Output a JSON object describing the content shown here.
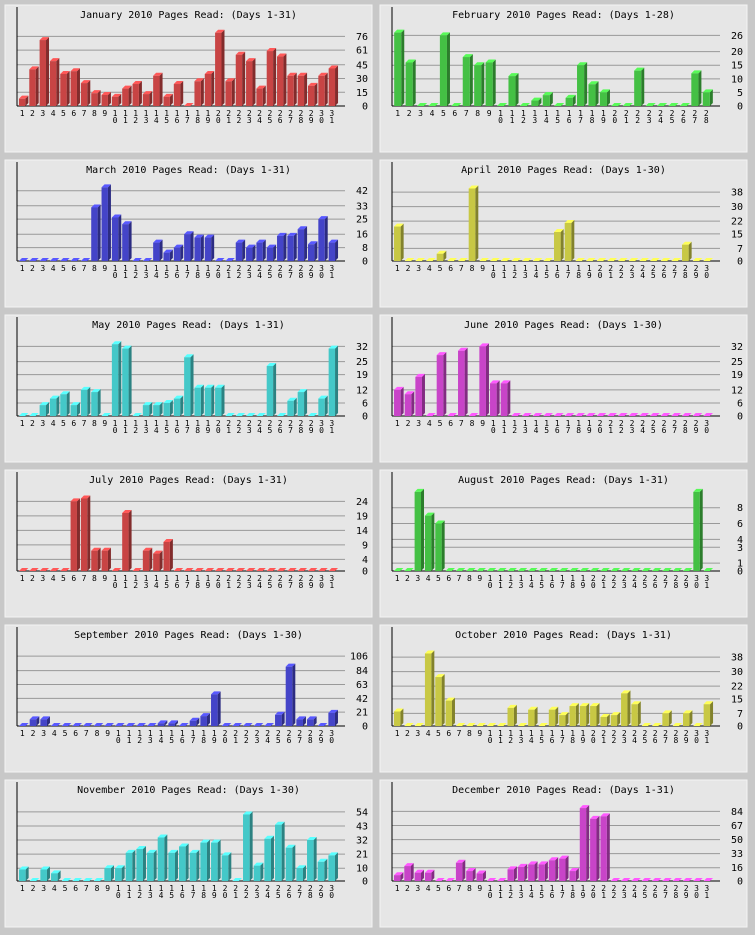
{
  "chart_data": [
    {
      "type": "bar",
      "title": "January 2010 Pages Read: (Days 1-31)",
      "categories": [
        "1",
        "2",
        "3",
        "4",
        "5",
        "6",
        "7",
        "8",
        "9",
        "10",
        "11",
        "12",
        "13",
        "14",
        "15",
        "16",
        "17",
        "18",
        "19",
        "20",
        "21",
        "22",
        "23",
        "24",
        "25",
        "26",
        "27",
        "28",
        "29",
        "30",
        "31"
      ],
      "values": [
        8,
        40,
        72,
        49,
        35,
        38,
        25,
        14,
        12,
        10,
        19,
        24,
        13,
        33,
        10,
        24,
        0,
        27,
        35,
        80,
        27,
        56,
        49,
        19,
        60,
        54,
        33,
        33,
        22,
        33,
        41
      ],
      "color": "#c84444",
      "ylim": [
        0,
        95
      ],
      "yticks": [
        0,
        15,
        30,
        45,
        61,
        76
      ],
      "grid": true
    },
    {
      "type": "bar",
      "title": "February 2010 Pages Read: (Days 1-28)",
      "categories": [
        "1",
        "2",
        "3",
        "4",
        "5",
        "6",
        "7",
        "8",
        "9",
        "10",
        "11",
        "12",
        "13",
        "14",
        "15",
        "16",
        "17",
        "18",
        "19",
        "20",
        "21",
        "22",
        "23",
        "24",
        "25",
        "26",
        "27",
        "28"
      ],
      "values": [
        27,
        16,
        0,
        0,
        26,
        0,
        18,
        15,
        16,
        0,
        11,
        0,
        2,
        4,
        0,
        3,
        15,
        8,
        5,
        0,
        0,
        13,
        0,
        0,
        0,
        0,
        12,
        5
      ],
      "color": "#44c044",
      "ylim": [
        0,
        32
      ],
      "yticks": [
        0,
        5,
        10,
        15,
        20,
        26
      ],
      "grid": true
    },
    {
      "type": "bar",
      "title": "March 2010 Pages Read: (Days 1-31)",
      "categories": [
        "1",
        "2",
        "3",
        "4",
        "5",
        "6",
        "7",
        "8",
        "9",
        "10",
        "11",
        "12",
        "13",
        "14",
        "15",
        "16",
        "17",
        "18",
        "19",
        "20",
        "21",
        "22",
        "23",
        "24",
        "25",
        "26",
        "27",
        "28",
        "29",
        "30",
        "31"
      ],
      "values": [
        0,
        0,
        0,
        0,
        0,
        0,
        0,
        32,
        44,
        26,
        22,
        0,
        0,
        11,
        5,
        8,
        16,
        14,
        14,
        0,
        0,
        11,
        8,
        11,
        8,
        15,
        15,
        19,
        10,
        25,
        11
      ],
      "color": "#4444c8",
      "ylim": [
        0,
        52
      ],
      "yticks": [
        0,
        8,
        16,
        25,
        33,
        42
      ],
      "grid": true
    },
    {
      "type": "bar",
      "title": "April 2010 Pages Read: (Days 1-30)",
      "categories": [
        "1",
        "2",
        "3",
        "4",
        "5",
        "6",
        "7",
        "8",
        "9",
        "10",
        "11",
        "12",
        "13",
        "14",
        "15",
        "16",
        "17",
        "18",
        "19",
        "20",
        "21",
        "22",
        "23",
        "24",
        "25",
        "26",
        "27",
        "28",
        "29",
        "30"
      ],
      "values": [
        19,
        0,
        0,
        0,
        4,
        0,
        0,
        40,
        0,
        0,
        0,
        0,
        0,
        0,
        0,
        16,
        21,
        0,
        0,
        0,
        0,
        0,
        0,
        0,
        0,
        0,
        0,
        9,
        0,
        0
      ],
      "color": "#c8c844",
      "ylim": [
        0,
        48
      ],
      "yticks": [
        0,
        7,
        15,
        22,
        30,
        38
      ],
      "grid": true
    },
    {
      "type": "bar",
      "title": "May 2010 Pages Read: (Days 1-31)",
      "categories": [
        "1",
        "2",
        "3",
        "4",
        "5",
        "6",
        "7",
        "8",
        "9",
        "10",
        "11",
        "12",
        "13",
        "14",
        "15",
        "16",
        "17",
        "18",
        "19",
        "20",
        "21",
        "22",
        "23",
        "24",
        "25",
        "26",
        "27",
        "28",
        "29",
        "30",
        "31"
      ],
      "values": [
        0,
        0,
        5,
        8,
        10,
        5,
        12,
        11,
        0,
        33,
        31,
        0,
        5,
        5,
        6,
        8,
        27,
        13,
        13,
        13,
        0,
        0,
        0,
        0,
        23,
        0,
        7,
        11,
        0,
        8,
        31
      ],
      "color": "#44c8c8",
      "ylim": [
        0,
        40
      ],
      "yticks": [
        0,
        6,
        12,
        19,
        25,
        32
      ],
      "grid": true
    },
    {
      "type": "bar",
      "title": "June 2010 Pages Read: (Days 1-30)",
      "categories": [
        "1",
        "2",
        "3",
        "4",
        "5",
        "6",
        "7",
        "8",
        "9",
        "10",
        "11",
        "12",
        "13",
        "14",
        "15",
        "16",
        "17",
        "18",
        "19",
        "20",
        "21",
        "22",
        "23",
        "24",
        "25",
        "26",
        "27",
        "28",
        "29",
        "30"
      ],
      "values": [
        12,
        10,
        18,
        0,
        28,
        0,
        30,
        0,
        32,
        15,
        15,
        0,
        0,
        0,
        0,
        0,
        0,
        0,
        0,
        0,
        0,
        0,
        0,
        0,
        0,
        0,
        0,
        0,
        0,
        0
      ],
      "color": "#c844c8",
      "ylim": [
        0,
        40
      ],
      "yticks": [
        0,
        6,
        12,
        19,
        25,
        32
      ],
      "grid": true
    },
    {
      "type": "bar",
      "title": "July 2010 Pages Read: (Days 1-31)",
      "categories": [
        "1",
        "2",
        "3",
        "4",
        "5",
        "6",
        "7",
        "8",
        "9",
        "10",
        "11",
        "12",
        "13",
        "14",
        "15",
        "16",
        "17",
        "18",
        "19",
        "20",
        "21",
        "22",
        "23",
        "24",
        "25",
        "26",
        "27",
        "28",
        "29",
        "30",
        "31"
      ],
      "values": [
        0,
        0,
        0,
        0,
        0,
        24,
        25,
        7,
        7,
        0,
        20,
        0,
        7,
        6,
        10,
        0,
        0,
        0,
        0,
        0,
        0,
        0,
        0,
        0,
        0,
        0,
        0,
        0,
        0,
        0,
        0
      ],
      "color": "#c84444",
      "ylim": [
        0,
        30
      ],
      "yticks": [
        0,
        4,
        9,
        14,
        19,
        24
      ],
      "grid": true
    },
    {
      "type": "bar",
      "title": "August 2010 Pages Read: (Days 1-31)",
      "categories": [
        "1",
        "2",
        "3",
        "4",
        "5",
        "6",
        "7",
        "8",
        "9",
        "10",
        "11",
        "12",
        "13",
        "14",
        "15",
        "16",
        "17",
        "18",
        "19",
        "20",
        "21",
        "22",
        "23",
        "24",
        "25",
        "26",
        "27",
        "28",
        "29",
        "30",
        "31"
      ],
      "values": [
        0,
        0,
        10,
        7,
        6,
        0,
        0,
        0,
        0,
        0,
        0,
        0,
        0,
        0,
        0,
        0,
        0,
        0,
        0,
        0,
        0,
        0,
        0,
        0,
        0,
        0,
        0,
        0,
        0,
        10,
        0
      ],
      "color": "#44c044",
      "ylim": [
        0,
        11
      ],
      "yticks": [
        0,
        1,
        3,
        4,
        6,
        8
      ],
      "grid": true
    },
    {
      "type": "bar",
      "title": "September 2010 Pages Read: (Days 1-30)",
      "categories": [
        "1",
        "2",
        "3",
        "4",
        "5",
        "6",
        "7",
        "8",
        "9",
        "10",
        "11",
        "12",
        "13",
        "14",
        "15",
        "16",
        "17",
        "18",
        "19",
        "20",
        "21",
        "22",
        "23",
        "24",
        "25",
        "26",
        "27",
        "28",
        "29",
        "30"
      ],
      "values": [
        0,
        10,
        10,
        0,
        0,
        0,
        0,
        0,
        0,
        0,
        0,
        0,
        0,
        4,
        4,
        0,
        8,
        15,
        48,
        0,
        0,
        0,
        0,
        0,
        17,
        90,
        10,
        10,
        0,
        20
      ],
      "color": "#4444c8",
      "ylim": [
        0,
        132
      ],
      "yticks": [
        0,
        21,
        42,
        63,
        84,
        106
      ],
      "grid": true
    },
    {
      "type": "bar",
      "title": "October 2010 Pages Read: (Days 1-31)",
      "categories": [
        "1",
        "2",
        "3",
        "4",
        "5",
        "6",
        "7",
        "8",
        "9",
        "10",
        "11",
        "12",
        "13",
        "14",
        "15",
        "16",
        "17",
        "18",
        "19",
        "20",
        "21",
        "22",
        "23",
        "24",
        "25",
        "26",
        "27",
        "28",
        "29",
        "30",
        "31"
      ],
      "values": [
        8,
        0,
        0,
        40,
        27,
        14,
        0,
        0,
        0,
        0,
        0,
        10,
        0,
        9,
        0,
        9,
        6,
        11,
        11,
        11,
        5,
        6,
        18,
        12,
        0,
        0,
        7,
        0,
        7,
        0,
        12
      ],
      "color": "#c8c844",
      "ylim": [
        0,
        48
      ],
      "yticks": [
        0,
        7,
        15,
        22,
        30,
        38
      ],
      "grid": true
    },
    {
      "type": "bar",
      "title": "November 2010 Pages Read: (Days 1-30)",
      "categories": [
        "1",
        "2",
        "3",
        "4",
        "5",
        "6",
        "7",
        "8",
        "9",
        "10",
        "11",
        "12",
        "13",
        "14",
        "15",
        "16",
        "17",
        "18",
        "19",
        "20",
        "21",
        "22",
        "23",
        "24",
        "25",
        "26",
        "27",
        "28",
        "29",
        "30"
      ],
      "values": [
        9,
        0,
        9,
        6,
        0,
        0,
        0,
        0,
        10,
        10,
        22,
        25,
        22,
        34,
        22,
        27,
        22,
        30,
        30,
        20,
        0,
        52,
        12,
        33,
        44,
        26,
        10,
        32,
        15,
        20
      ],
      "color": "#44c8c8",
      "ylim": [
        0,
        68
      ],
      "yticks": [
        0,
        10,
        21,
        32,
        43,
        54
      ],
      "grid": true
    },
    {
      "type": "bar",
      "title": "December 2010 Pages Read: (Days 1-31)",
      "categories": [
        "1",
        "2",
        "3",
        "4",
        "5",
        "6",
        "7",
        "8",
        "9",
        "10",
        "11",
        "12",
        "13",
        "14",
        "15",
        "16",
        "17",
        "18",
        "19",
        "20",
        "21",
        "22",
        "23",
        "24",
        "25",
        "26",
        "27",
        "28",
        "29",
        "30",
        "31"
      ],
      "values": [
        7,
        18,
        10,
        10,
        0,
        0,
        22,
        12,
        9,
        0,
        0,
        14,
        17,
        20,
        20,
        25,
        27,
        12,
        88,
        75,
        78,
        0,
        0,
        0,
        0,
        0,
        0,
        0,
        0,
        0,
        0
      ],
      "color": "#c844c8",
      "ylim": [
        0,
        105
      ],
      "yticks": [
        0,
        16,
        33,
        50,
        67,
        84
      ],
      "grid": true
    }
  ]
}
